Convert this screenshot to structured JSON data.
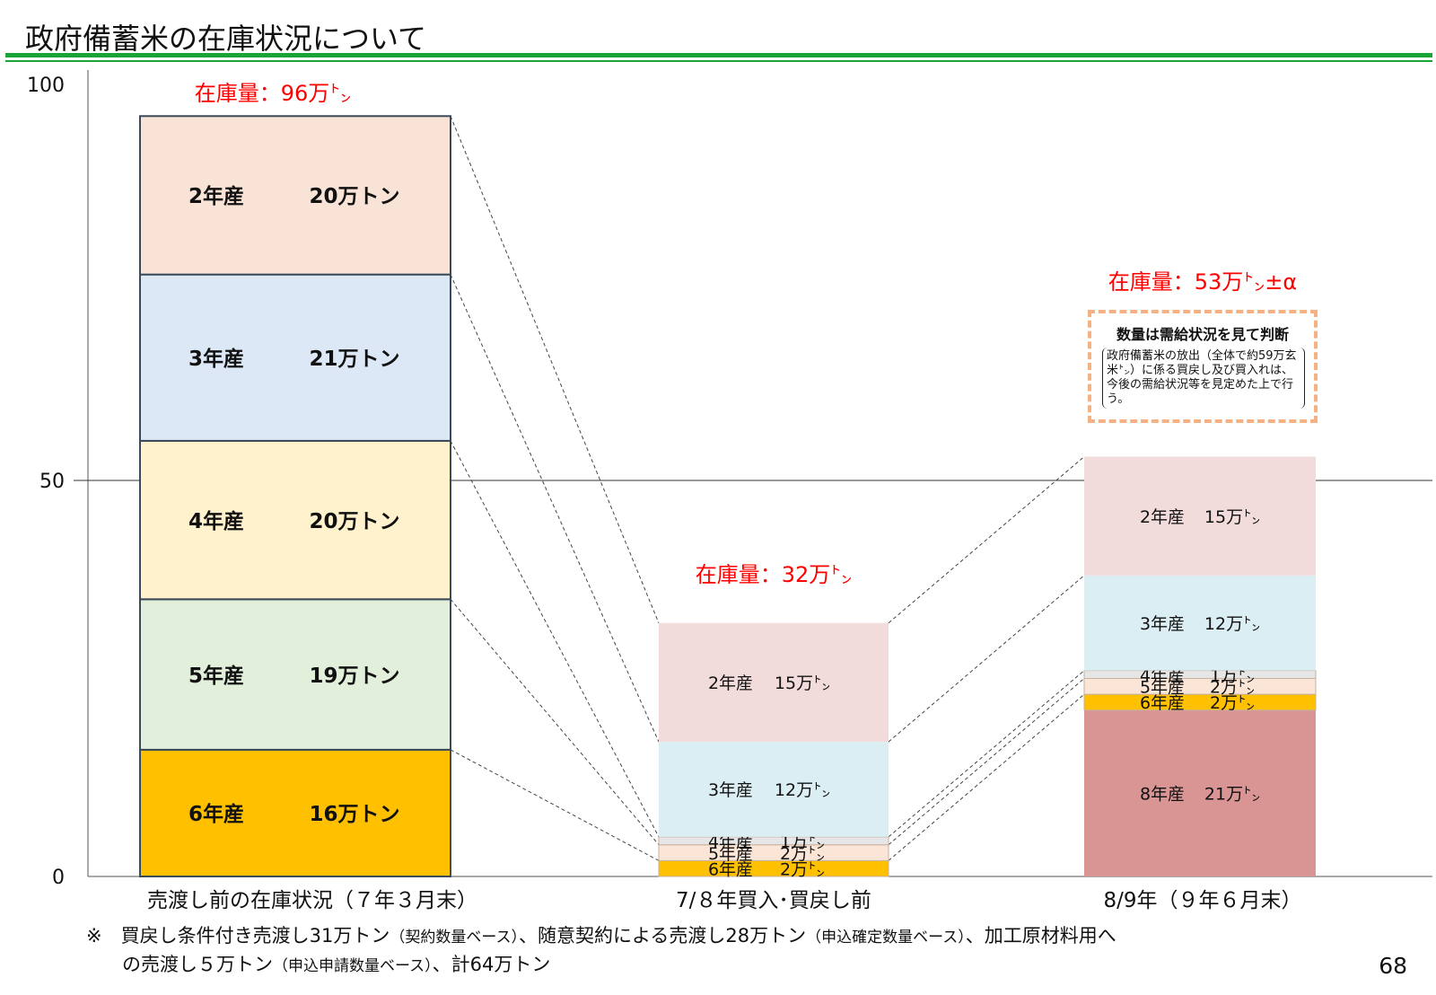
{
  "page": {
    "title": "政府備蓄米の在庫状況について",
    "page_number": "68",
    "footnote_line1_pre": "※　買戻し条件付き売渡し31万トン",
    "footnote_line1_small1": "（契約数量ベース）",
    "footnote_line1_mid": "、随意契約による売渡し28万トン",
    "footnote_line1_small2": "（申込確定数量ベース）",
    "footnote_line1_post": "、加工原材料用へ",
    "footnote_line2_pre": "の売渡し５万トン",
    "footnote_line2_small": "（申込申請数量ベース）",
    "footnote_line2_post": "、計64万トン",
    "callout_title": "数量は需給状況を見て判断",
    "callout_body": "政府備蓄米の放出（全体で約59万玄米㌧）に係る買戻し及び買入れは、今後の需給状況等を見定めた上で行う。"
  },
  "chart_data": {
    "type": "bar",
    "stacked": true,
    "ylim": [
      0,
      100
    ],
    "y_ticks": [
      "0",
      "50",
      "100"
    ],
    "gridline_at": 50,
    "categories": [
      "売渡し前の在庫状況（７年３月末）",
      "7/８年買入･買戻し前",
      "8/9年（９年６月末）"
    ],
    "totals": [
      "在庫量：96万㌧",
      "在庫量：32万㌧",
      "在庫量：53万㌧±α"
    ],
    "stacks": [
      {
        "segments": [
          {
            "label": "6年産",
            "value_label": "16万トン",
            "value": 16,
            "color": "#ffc000"
          },
          {
            "label": "5年産",
            "value_label": "19万トン",
            "value": 19,
            "color": "#e2efda"
          },
          {
            "label": "4年産",
            "value_label": "20万トン",
            "value": 20,
            "color": "#fff2cc"
          },
          {
            "label": "3年産",
            "value_label": "21万トン",
            "value": 21,
            "color": "#dde8f6"
          },
          {
            "label": "2年産",
            "value_label": "20万トン",
            "value": 20,
            "color": "#f9e3d6"
          }
        ]
      },
      {
        "segments": [
          {
            "label": "6年産",
            "value_label": "2万㌧",
            "value": 2,
            "color": "#ffc000"
          },
          {
            "label": "5年産",
            "value_label": "2万㌧",
            "value": 2,
            "color": "#fbe5d6"
          },
          {
            "label": "4年産",
            "value_label": "1万㌧",
            "value": 1,
            "color": "#e7e6e6"
          },
          {
            "label": "3年産",
            "value_label": "12万㌧",
            "value": 12,
            "color": "#daeef3"
          },
          {
            "label": "2年産",
            "value_label": "15万㌧",
            "value": 15,
            "color": "#f2dcdb"
          }
        ]
      },
      {
        "segments": [
          {
            "label": "8年産",
            "value_label": "21万㌧",
            "value": 21,
            "color": "#d99594"
          },
          {
            "label": "6年産",
            "value_label": "2万㌧",
            "value": 2,
            "color": "#ffc000"
          },
          {
            "label": "5年産",
            "value_label": "2万㌧",
            "value": 2,
            "color": "#fbe5d6"
          },
          {
            "label": "4年産",
            "value_label": "1万㌧",
            "value": 1,
            "color": "#e7e6e6"
          },
          {
            "label": "3年産",
            "value_label": "12万㌧",
            "value": 12,
            "color": "#daeef3"
          },
          {
            "label": "2年産",
            "value_label": "15万㌧",
            "value": 15,
            "color": "#f2dcdb"
          }
        ]
      }
    ]
  }
}
